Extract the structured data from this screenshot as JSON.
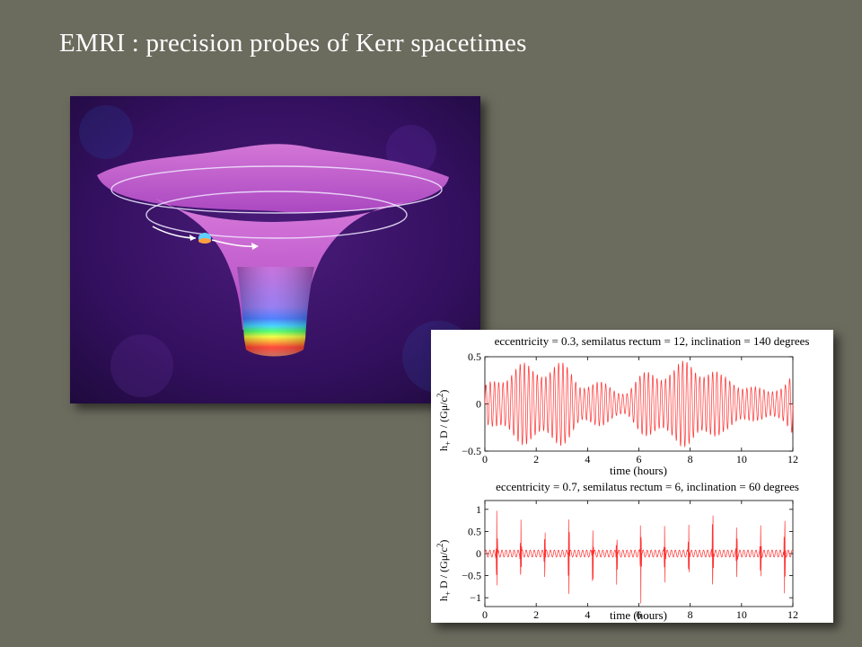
{
  "slide": {
    "title": "EMRI : precision probes of Kerr spacetimes"
  },
  "illustration": {
    "description_icon": "black-hole-funnel-icon"
  },
  "plots": [
    {
      "title": "eccentricity = 0.3, semilatus rectum = 12,  inclination = 140 degrees",
      "xlabel": "time (hours)",
      "ylabel_main": "h",
      "ylabel_sub": "+",
      "ylabel_rest": " D / (Gμ/c",
      "ylabel_sup": "2",
      "ylabel_close": ")",
      "x_ticks": [
        "0",
        "2",
        "4",
        "6",
        "8",
        "10",
        "12"
      ],
      "y_ticks": [
        "0.5",
        "0",
        "−0.5"
      ]
    },
    {
      "title": "eccentricity = 0.7, semilatus rectum = 6,  inclination = 60 degrees",
      "xlabel": "time (hours)",
      "ylabel_main": "h",
      "ylabel_sub": "+",
      "ylabel_rest": " D / (Gμ/c",
      "ylabel_sup": "2",
      "ylabel_close": ")",
      "x_ticks": [
        "0",
        "2",
        "4",
        "6",
        "8",
        "10",
        "12"
      ],
      "y_ticks": [
        "1",
        "0.5",
        "0",
        "−0.5",
        "−1"
      ]
    }
  ],
  "chart_data": [
    {
      "type": "line",
      "title": "eccentricity = 0.3, semilatus rectum = 12,  inclination = 140 degrees",
      "xlabel": "time (hours)",
      "ylabel": "h+ D / (Gμ/c2)",
      "xlim": [
        0,
        12
      ],
      "ylim": [
        -0.5,
        0.5
      ],
      "color": "#ff3030"
    },
    {
      "type": "line",
      "title": "eccentricity = 0.7, semilatus rectum = 6,  inclination = 60 degrees",
      "xlabel": "time (hours)",
      "ylabel": "h+ D / (Gμ/c2)",
      "xlim": [
        0,
        12
      ],
      "ylim": [
        -1.2,
        1.2
      ],
      "color": "#ff3030"
    }
  ]
}
